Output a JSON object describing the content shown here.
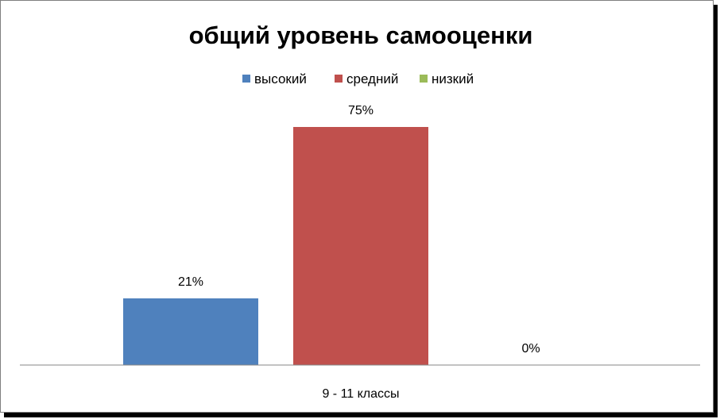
{
  "chart_data": {
    "type": "bar",
    "title": "общий уровень самооценки",
    "categories": [
      "9 - 11 классы"
    ],
    "series": [
      {
        "name": "высокий",
        "values": [
          21
        ],
        "label": "21%",
        "color": "#4F81BD"
      },
      {
        "name": "средний",
        "values": [
          75
        ],
        "label": "75%",
        "color": "#C0504D"
      },
      {
        "name": "низкий",
        "values": [
          0
        ],
        "label": "0%",
        "color": "#9BBB59"
      }
    ],
    "unit": "%",
    "ylim": [
      0,
      80
    ],
    "legend_position": "top",
    "grid": false,
    "xlabel": "",
    "ylabel": ""
  }
}
